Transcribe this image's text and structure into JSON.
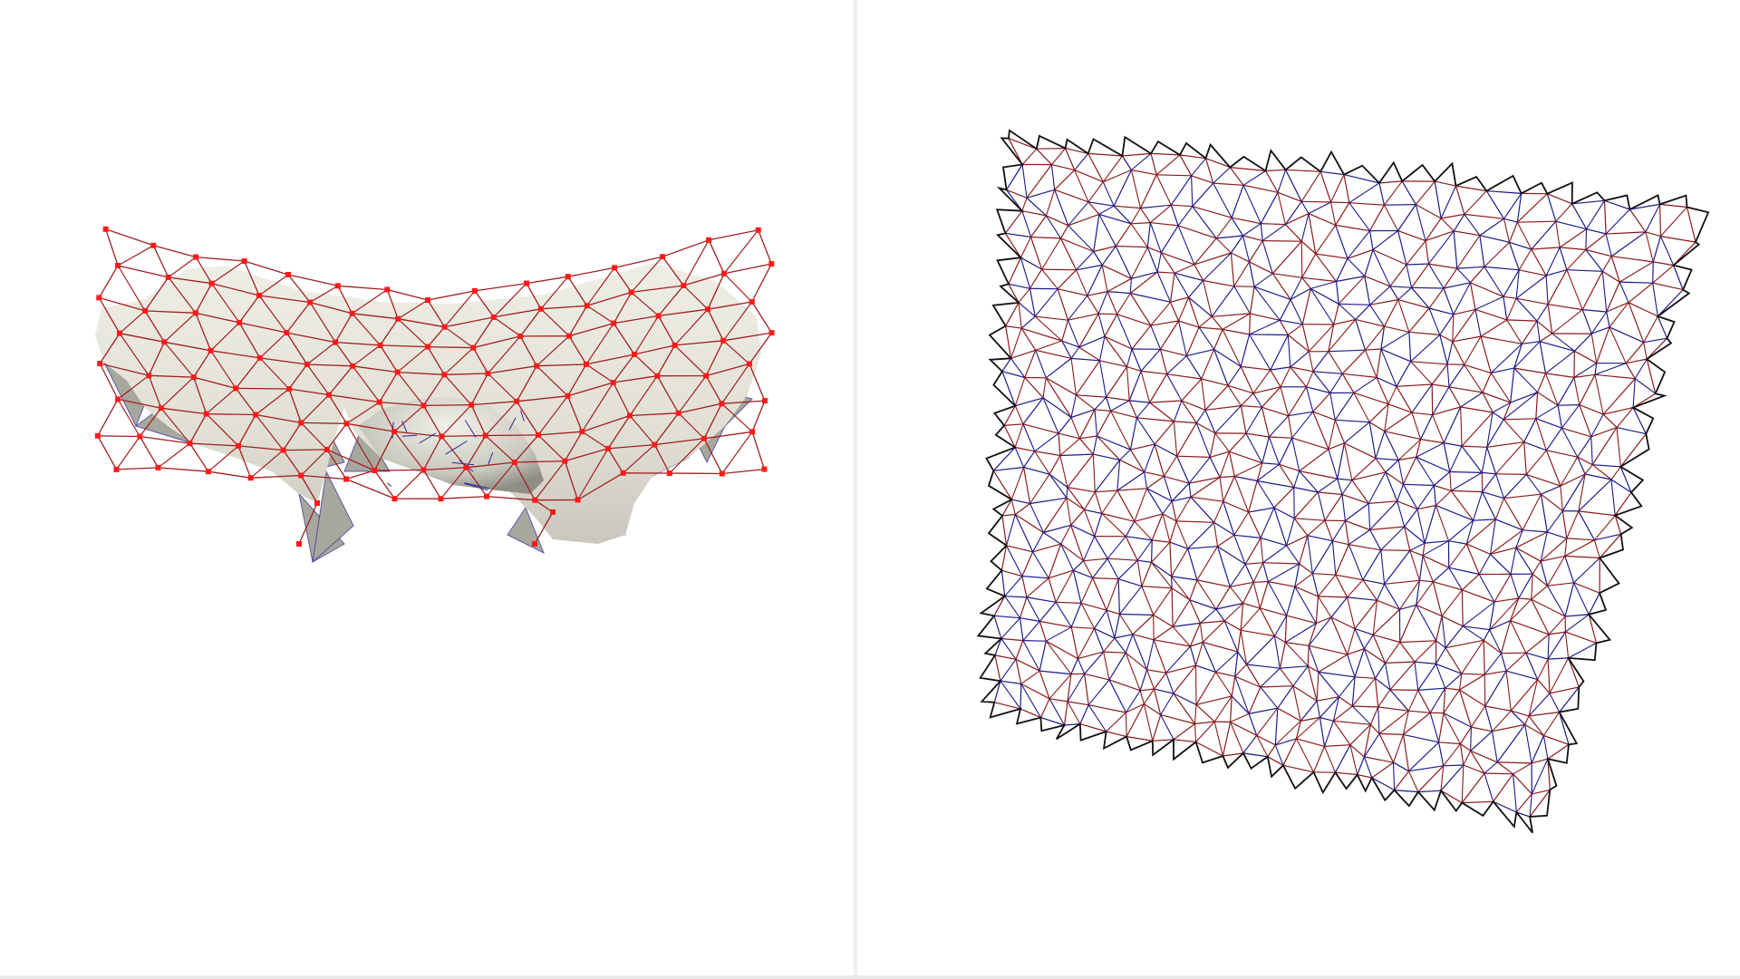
{
  "views": {
    "left": {
      "name": "3d-mesh-view",
      "mesh_color": "#a02020",
      "vertex_color": "#ff1a1a",
      "back_edge_color": "#2a2a9a",
      "surface_color": "#e6e4d8",
      "surface_shadow_color": "#a8a79e"
    },
    "right": {
      "name": "2d-parameterization-view",
      "edge_color_a": "#8a1a1a",
      "edge_color_b": "#1a1a8a",
      "boundary_color": "#101010"
    }
  },
  "colors": {
    "background": "#ffffff",
    "divider": "#eeeeee"
  }
}
